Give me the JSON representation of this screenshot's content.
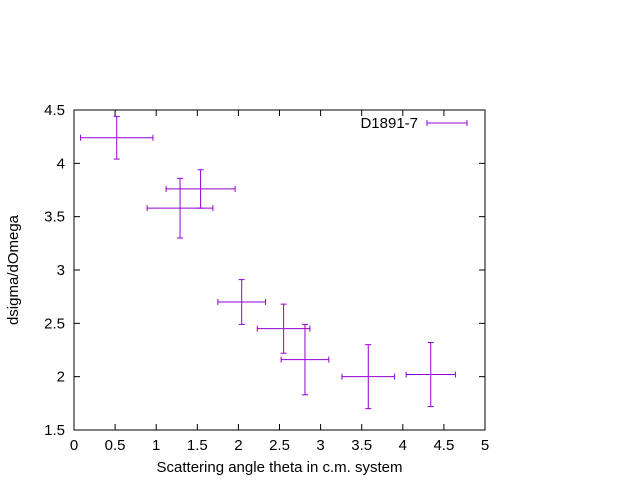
{
  "chart_data": {
    "type": "scatter",
    "xlabel": "Scattering angle theta in c.m. system",
    "ylabel": "dsigma/dOmega",
    "xlim": [
      0,
      5
    ],
    "ylim": [
      1.5,
      4.5
    ],
    "x_ticks": [
      "0",
      "0.5",
      "1",
      "1.5",
      "2",
      "2.5",
      "3",
      "3.5",
      "4",
      "4.5",
      "5"
    ],
    "y_ticks": [
      "1.5",
      "2",
      "2.5",
      "3",
      "3.5",
      "4",
      "4.5"
    ],
    "grid": false,
    "legend": "top-right",
    "series": [
      {
        "name": "D1891-7",
        "color": "#9400d3",
        "style": "xyerrorbars",
        "points": [
          {
            "x": 0.52,
            "y": 4.24,
            "xerr": 0.44,
            "yerr": 0.2
          },
          {
            "x": 1.29,
            "y": 3.58,
            "xerr": 0.4,
            "yerr": 0.28
          },
          {
            "x": 1.54,
            "y": 3.76,
            "xerr": 0.42,
            "yerr": 0.18
          },
          {
            "x": 2.04,
            "y": 2.7,
            "xerr": 0.29,
            "yerr": 0.21
          },
          {
            "x": 2.55,
            "y": 2.45,
            "xerr": 0.32,
            "yerr": 0.23
          },
          {
            "x": 2.81,
            "y": 2.16,
            "xerr": 0.29,
            "yerr": 0.33
          },
          {
            "x": 3.58,
            "y": 2.0,
            "xerr": 0.32,
            "yerr": 0.3
          },
          {
            "x": 4.34,
            "y": 2.02,
            "xerr": 0.3,
            "yerr": 0.3
          }
        ]
      }
    ]
  }
}
